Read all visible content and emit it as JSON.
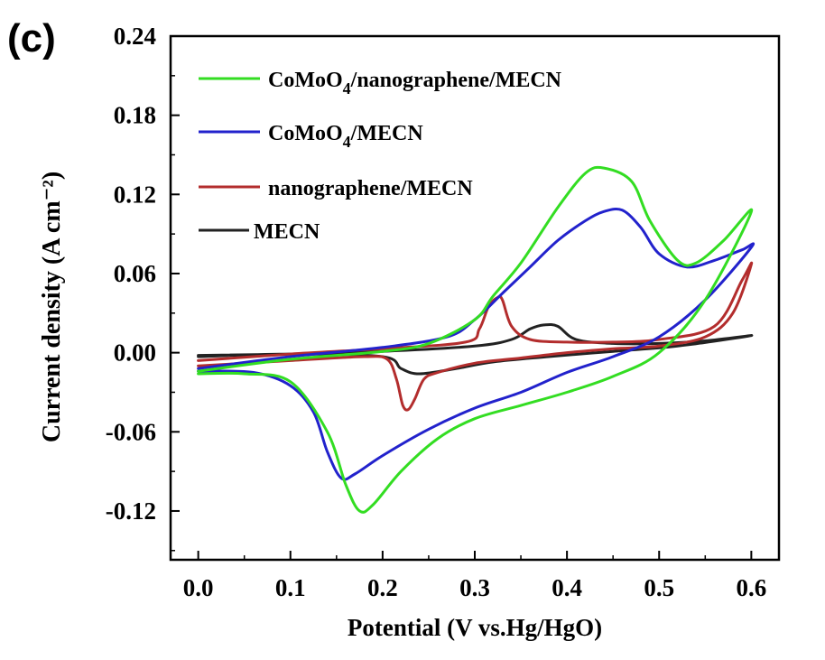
{
  "panel_label": "(c)",
  "chart_data": {
    "type": "line",
    "xlabel": "Potential (V vs.Hg/HgO)",
    "ylabel": "Current density (A cm⁻²)",
    "xlim": [
      -0.03,
      0.63
    ],
    "ylim": [
      -0.157,
      0.24
    ],
    "xticks": [
      "0.0",
      "0.1",
      "0.2",
      "0.3",
      "0.4",
      "0.5",
      "0.6"
    ],
    "yticks": [
      "-0.12",
      "-0.06",
      "0.00",
      "0.06",
      "0.12",
      "0.18",
      "0.24"
    ],
    "legend_position": "top-left",
    "series": [
      {
        "name": "CoMoO4/nanographene/MECN",
        "legend_main": "CoMoO",
        "legend_sub": "4",
        "legend_tail": "/nanographene/MECN",
        "color": "#33dd22",
        "points": [
          [
            0.0,
            -0.016
          ],
          [
            0.05,
            -0.016
          ],
          [
            0.1,
            -0.022
          ],
          [
            0.14,
            -0.06
          ],
          [
            0.16,
            -0.1
          ],
          [
            0.175,
            -0.12
          ],
          [
            0.19,
            -0.115
          ],
          [
            0.22,
            -0.09
          ],
          [
            0.26,
            -0.065
          ],
          [
            0.3,
            -0.05
          ],
          [
            0.35,
            -0.04
          ],
          [
            0.4,
            -0.03
          ],
          [
            0.45,
            -0.018
          ],
          [
            0.5,
            0.0
          ],
          [
            0.55,
            0.04
          ],
          [
            0.6,
            0.107
          ],
          [
            0.57,
            0.085
          ],
          [
            0.54,
            0.068
          ],
          [
            0.52,
            0.07
          ],
          [
            0.49,
            0.1
          ],
          [
            0.47,
            0.13
          ],
          [
            0.44,
            0.14
          ],
          [
            0.42,
            0.136
          ],
          [
            0.39,
            0.11
          ],
          [
            0.35,
            0.068
          ],
          [
            0.32,
            0.043
          ],
          [
            0.3,
            0.025
          ],
          [
            0.25,
            0.007
          ],
          [
            0.2,
            0.001
          ],
          [
            0.1,
            -0.005
          ],
          [
            0.0,
            -0.014
          ]
        ]
      },
      {
        "name": "CoMoO4/MECN",
        "legend_main": "CoMoO",
        "legend_sub": "4",
        "legend_tail": "/MECN",
        "color": "#2222cc",
        "points": [
          [
            0.0,
            -0.014
          ],
          [
            0.06,
            -0.015
          ],
          [
            0.1,
            -0.025
          ],
          [
            0.125,
            -0.045
          ],
          [
            0.14,
            -0.075
          ],
          [
            0.155,
            -0.095
          ],
          [
            0.17,
            -0.092
          ],
          [
            0.2,
            -0.078
          ],
          [
            0.25,
            -0.058
          ],
          [
            0.3,
            -0.042
          ],
          [
            0.35,
            -0.03
          ],
          [
            0.4,
            -0.015
          ],
          [
            0.45,
            -0.003
          ],
          [
            0.5,
            0.012
          ],
          [
            0.55,
            0.04
          ],
          [
            0.6,
            0.08
          ],
          [
            0.59,
            0.078
          ],
          [
            0.56,
            0.07
          ],
          [
            0.53,
            0.065
          ],
          [
            0.5,
            0.075
          ],
          [
            0.48,
            0.095
          ],
          [
            0.46,
            0.108
          ],
          [
            0.44,
            0.107
          ],
          [
            0.42,
            0.1
          ],
          [
            0.39,
            0.085
          ],
          [
            0.36,
            0.065
          ],
          [
            0.33,
            0.045
          ],
          [
            0.3,
            0.025
          ],
          [
            0.27,
            0.012
          ],
          [
            0.2,
            0.004
          ],
          [
            0.1,
            -0.003
          ],
          [
            0.0,
            -0.012
          ]
        ]
      },
      {
        "name": "nanographene/MECN",
        "legend_main": "nanographene/MECN",
        "legend_sub": "",
        "legend_tail": "",
        "color": "#b32d2d",
        "points": [
          [
            0.0,
            -0.01
          ],
          [
            0.1,
            -0.006
          ],
          [
            0.18,
            -0.003
          ],
          [
            0.205,
            -0.005
          ],
          [
            0.215,
            -0.02
          ],
          [
            0.222,
            -0.04
          ],
          [
            0.228,
            -0.043
          ],
          [
            0.235,
            -0.035
          ],
          [
            0.245,
            -0.02
          ],
          [
            0.26,
            -0.015
          ],
          [
            0.3,
            -0.008
          ],
          [
            0.35,
            -0.004
          ],
          [
            0.4,
            0.0
          ],
          [
            0.45,
            0.003
          ],
          [
            0.5,
            0.005
          ],
          [
            0.55,
            0.012
          ],
          [
            0.58,
            0.03
          ],
          [
            0.6,
            0.067
          ],
          [
            0.59,
            0.055
          ],
          [
            0.56,
            0.02
          ],
          [
            0.5,
            0.01
          ],
          [
            0.45,
            0.008
          ],
          [
            0.4,
            0.008
          ],
          [
            0.36,
            0.01
          ],
          [
            0.34,
            0.02
          ],
          [
            0.33,
            0.04
          ],
          [
            0.325,
            0.042
          ],
          [
            0.315,
            0.035
          ],
          [
            0.305,
            0.018
          ],
          [
            0.29,
            0.008
          ],
          [
            0.2,
            0.003
          ],
          [
            0.1,
            -0.001
          ],
          [
            0.0,
            -0.006
          ]
        ]
      },
      {
        "name": "MECN",
        "legend_main": "MECN",
        "legend_sub": "",
        "legend_tail": "",
        "color": "#222222",
        "points": [
          [
            0.0,
            -0.003
          ],
          [
            0.1,
            -0.001
          ],
          [
            0.2,
            -0.003
          ],
          [
            0.22,
            -0.012
          ],
          [
            0.24,
            -0.016
          ],
          [
            0.28,
            -0.012
          ],
          [
            0.32,
            -0.007
          ],
          [
            0.38,
            -0.003
          ],
          [
            0.45,
            0.001
          ],
          [
            0.52,
            0.005
          ],
          [
            0.6,
            0.013
          ],
          [
            0.55,
            0.009
          ],
          [
            0.5,
            0.007
          ],
          [
            0.45,
            0.007
          ],
          [
            0.41,
            0.01
          ],
          [
            0.39,
            0.02
          ],
          [
            0.375,
            0.021
          ],
          [
            0.36,
            0.018
          ],
          [
            0.34,
            0.01
          ],
          [
            0.3,
            0.005
          ],
          [
            0.2,
            0.001
          ],
          [
            0.1,
            -0.001
          ],
          [
            0.0,
            -0.002
          ]
        ]
      }
    ]
  }
}
